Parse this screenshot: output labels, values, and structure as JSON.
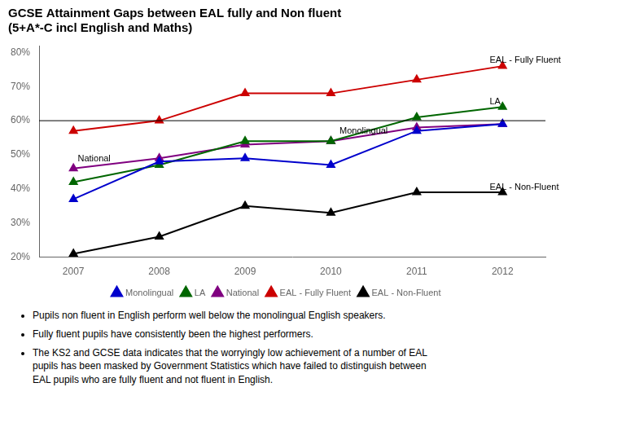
{
  "chart_data": {
    "type": "line",
    "title": "GCSE Attainment Gaps between EAL fully and Non fluent\n(5+A*-C incl English and Maths)",
    "x": [
      2007,
      2008,
      2009,
      2010,
      2011,
      2012
    ],
    "series": [
      {
        "name": "Monolingual",
        "color": "#0000CC",
        "marker": "triangle",
        "values": [
          37,
          48,
          49,
          47,
          57,
          59
        ]
      },
      {
        "name": "LA",
        "color": "#006600",
        "marker": "triangle",
        "values": [
          42,
          47,
          54,
          54,
          61,
          64
        ]
      },
      {
        "name": "National",
        "color": "#800080",
        "marker": "triangle",
        "values": [
          46,
          49,
          53,
          54,
          58,
          59
        ]
      },
      {
        "name": "EAL - Fully Fluent",
        "color": "#CC0000",
        "marker": "triangle",
        "values": [
          57,
          60,
          68,
          68,
          72,
          76
        ]
      },
      {
        "name": "EAL - Non-Fluent",
        "color": "#000000",
        "marker": "triangle",
        "values": [
          21,
          26,
          35,
          33,
          39,
          39
        ]
      }
    ],
    "xlim": [
      2006.6,
      2012.5
    ],
    "xticks": [
      2007,
      2008,
      2009,
      2010,
      2011,
      2012
    ],
    "ylim": [
      20,
      82
    ],
    "yticks": [
      {
        "value": 20,
        "label": "20%"
      },
      {
        "value": 30,
        "label": "30%"
      },
      {
        "value": 40,
        "label": "40%"
      },
      {
        "value": 50,
        "label": "50%"
      },
      {
        "value": 60,
        "label": "60%"
      },
      {
        "value": 70,
        "label": "70%"
      },
      {
        "value": 80,
        "label": "80%"
      }
    ],
    "hlines": [
      60
    ],
    "annotations": [
      {
        "text": "EAL - Fully Fluent",
        "x": 2011.85,
        "y": 76.5
      },
      {
        "text": "LA",
        "x": 2011.85,
        "y": 64.2
      },
      {
        "text": "Monolingual",
        "x": 2010.1,
        "y": 55.5
      },
      {
        "text": "National",
        "x": 2007.05,
        "y": 47.5
      },
      {
        "text": "EAL - Non-Fluent",
        "x": 2011.85,
        "y": 39.2
      }
    ],
    "notes": [
      "Pupils non fluent in English perform well below the monolingual English speakers.",
      "Fully fluent pupils  have consistently  been the highest performers.",
      "The KS2 and GCSE data indicates that the worryingly low achievement of a number of EAL\npupils  has been masked by Government Statistics which have failed to distinguish between\nEAL pupils who are fully fluent and not fluent in English."
    ],
    "grid": false,
    "legend": "bottom"
  }
}
